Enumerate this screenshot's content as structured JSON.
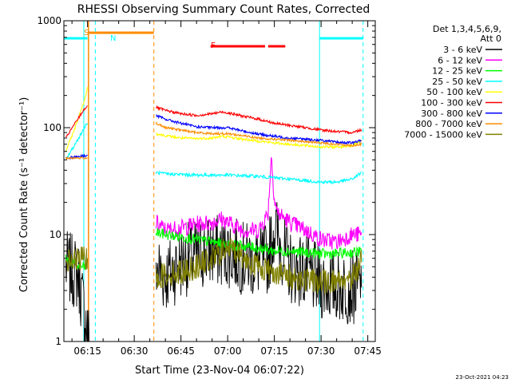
{
  "chart_data": {
    "type": "line",
    "title": "RHESSI Observing Summary Count Rates, Corrected",
    "xlabel": "Start Time (23-Nov-04 06:07:22)",
    "ylabel": "Corrected Count Rate (s⁻¹ detector⁻¹)",
    "yscale": "log",
    "ylim": [
      1,
      1000
    ],
    "xlim_minutes_after_0600": [
      7.4,
      107.4
    ],
    "x_ticks": [
      {
        "label": "06:15",
        "minutes": 15
      },
      {
        "label": "06:30",
        "minutes": 30
      },
      {
        "label": "06:45",
        "minutes": 45
      },
      {
        "label": "07:00",
        "minutes": 60
      },
      {
        "label": "07:15",
        "minutes": 75
      },
      {
        "label": "07:30",
        "minutes": 90
      },
      {
        "label": "07:45",
        "minutes": 105
      }
    ],
    "y_ticks": [
      {
        "label": "1",
        "value": 1
      },
      {
        "label": "10",
        "value": 10
      },
      {
        "label": "100",
        "value": 100
      },
      {
        "label": "1000",
        "value": 1000
      }
    ],
    "legend_header": [
      "Det 1,3,4,5,6,9,",
      "Att 0"
    ],
    "legend_position": "right",
    "series": [
      {
        "name": "3 - 6 keV",
        "color": "#000000",
        "points": [
          [
            8,
            5
          ],
          [
            12,
            4.2
          ],
          [
            15.5,
            1
          ],
          [
            37,
            5
          ],
          [
            40,
            4
          ],
          [
            45,
            5.5
          ],
          [
            50,
            6.5
          ],
          [
            55,
            7
          ],
          [
            60,
            7
          ],
          [
            65,
            6
          ],
          [
            70,
            5.5
          ],
          [
            73,
            6
          ],
          [
            75,
            12
          ],
          [
            77,
            8
          ],
          [
            80,
            5
          ],
          [
            85,
            4.5
          ],
          [
            90,
            3.5
          ],
          [
            95,
            3.3
          ],
          [
            100,
            3.2
          ],
          [
            103,
            3.2
          ]
        ]
      },
      {
        "name": "6 - 12 keV",
        "color": "#ff00ff",
        "points": [
          [
            37,
            13
          ],
          [
            40,
            11
          ],
          [
            45,
            11.5
          ],
          [
            50,
            12.5
          ],
          [
            55,
            13
          ],
          [
            58,
            14
          ],
          [
            60,
            13
          ],
          [
            65,
            11
          ],
          [
            70,
            11
          ],
          [
            73,
            16
          ],
          [
            74,
            55
          ],
          [
            75,
            22
          ],
          [
            76,
            16
          ],
          [
            80,
            13
          ],
          [
            85,
            11
          ],
          [
            90,
            9
          ],
          [
            95,
            8.5
          ],
          [
            100,
            10
          ],
          [
            103,
            10
          ]
        ]
      },
      {
        "name": "12 - 25 keV",
        "color": "#00ff00",
        "points": [
          [
            8,
            6
          ],
          [
            12,
            5
          ],
          [
            15,
            5
          ],
          [
            37,
            10.5
          ],
          [
            40,
            10
          ],
          [
            45,
            9.5
          ],
          [
            50,
            9
          ],
          [
            55,
            8.5
          ],
          [
            60,
            8
          ],
          [
            65,
            7.8
          ],
          [
            70,
            7.5
          ],
          [
            75,
            7
          ],
          [
            80,
            7
          ],
          [
            85,
            6.8
          ],
          [
            90,
            6.6
          ],
          [
            95,
            6.6
          ],
          [
            100,
            6.8
          ],
          [
            103,
            7
          ]
        ]
      },
      {
        "name": "25 - 50 keV",
        "color": "#00ffff",
        "points": [
          [
            8,
            50
          ],
          [
            11,
            70
          ],
          [
            14,
            100
          ],
          [
            15,
            110
          ],
          [
            37,
            38
          ],
          [
            40,
            37
          ],
          [
            45,
            36.5
          ],
          [
            50,
            36
          ],
          [
            55,
            36
          ],
          [
            60,
            36
          ],
          [
            65,
            35.5
          ],
          [
            70,
            35
          ],
          [
            75,
            34
          ],
          [
            80,
            33
          ],
          [
            85,
            32
          ],
          [
            90,
            31
          ],
          [
            95,
            31
          ],
          [
            100,
            33
          ],
          [
            103,
            38
          ]
        ]
      },
      {
        "name": "50 - 100 keV",
        "color": "#ffff00",
        "points": [
          [
            8,
            60
          ],
          [
            11,
            100
          ],
          [
            14,
            180
          ],
          [
            15,
            240
          ],
          [
            37,
            88
          ],
          [
            40,
            84
          ],
          [
            45,
            80
          ],
          [
            50,
            79
          ],
          [
            55,
            80
          ],
          [
            58,
            83
          ],
          [
            60,
            82
          ],
          [
            65,
            78
          ],
          [
            70,
            75
          ],
          [
            75,
            72
          ],
          [
            80,
            70
          ],
          [
            85,
            68
          ],
          [
            90,
            66
          ],
          [
            95,
            66
          ],
          [
            100,
            68
          ],
          [
            103,
            75
          ]
        ]
      },
      {
        "name": "100 - 300 keV",
        "color": "#ff0000",
        "points": [
          [
            8,
            80
          ],
          [
            11,
            110
          ],
          [
            14,
            150
          ],
          [
            15,
            160
          ],
          [
            37,
            155
          ],
          [
            40,
            145
          ],
          [
            45,
            135
          ],
          [
            50,
            130
          ],
          [
            55,
            135
          ],
          [
            58,
            140
          ],
          [
            60,
            138
          ],
          [
            65,
            128
          ],
          [
            70,
            120
          ],
          [
            75,
            110
          ],
          [
            80,
            105
          ],
          [
            85,
            100
          ],
          [
            90,
            95
          ],
          [
            95,
            92
          ],
          [
            100,
            90
          ],
          [
            103,
            96
          ]
        ]
      },
      {
        "name": "300 - 800 keV",
        "color": "#0000ff",
        "points": [
          [
            8,
            52
          ],
          [
            15,
            55
          ],
          [
            37,
            130
          ],
          [
            40,
            120
          ],
          [
            45,
            110
          ],
          [
            50,
            102
          ],
          [
            55,
            100
          ],
          [
            60,
            100
          ],
          [
            65,
            93
          ],
          [
            70,
            87
          ],
          [
            75,
            83
          ],
          [
            80,
            80
          ],
          [
            85,
            78
          ],
          [
            90,
            76
          ],
          [
            95,
            73
          ],
          [
            100,
            72
          ],
          [
            103,
            76
          ]
        ]
      },
      {
        "name": "800 - 7000 keV",
        "color": "#ff8c00",
        "points": [
          [
            8,
            52
          ],
          [
            15,
            52
          ],
          [
            37,
            110
          ],
          [
            40,
            100
          ],
          [
            45,
            95
          ],
          [
            50,
            90
          ],
          [
            55,
            88
          ],
          [
            60,
            88
          ],
          [
            65,
            84
          ],
          [
            70,
            80
          ],
          [
            75,
            78
          ],
          [
            80,
            76
          ],
          [
            85,
            74
          ],
          [
            90,
            72
          ],
          [
            95,
            70
          ],
          [
            100,
            68
          ],
          [
            103,
            70
          ]
        ]
      },
      {
        "name": "7000 - 15000 keV",
        "color": "#808000",
        "points": [
          [
            8,
            5.5
          ],
          [
            12,
            5.8
          ],
          [
            15,
            6
          ],
          [
            37,
            4
          ],
          [
            40,
            4.2
          ],
          [
            45,
            4.5
          ],
          [
            50,
            5
          ],
          [
            55,
            6
          ],
          [
            60,
            7.5
          ],
          [
            63,
            7
          ],
          [
            65,
            6
          ],
          [
            70,
            5
          ],
          [
            75,
            4.5
          ],
          [
            80,
            4
          ],
          [
            85,
            3.8
          ],
          [
            90,
            3.6
          ],
          [
            95,
            3.7
          ],
          [
            100,
            4
          ],
          [
            103,
            5.5
          ]
        ]
      }
    ],
    "annotations": [
      {
        "label": "S",
        "color": "#ff8c00"
      },
      {
        "label": "N",
        "color": "#00ffff"
      },
      {
        "label": "F",
        "color": "#ff0000"
      }
    ],
    "timestamp": "23-Oct-2021 04:23"
  }
}
